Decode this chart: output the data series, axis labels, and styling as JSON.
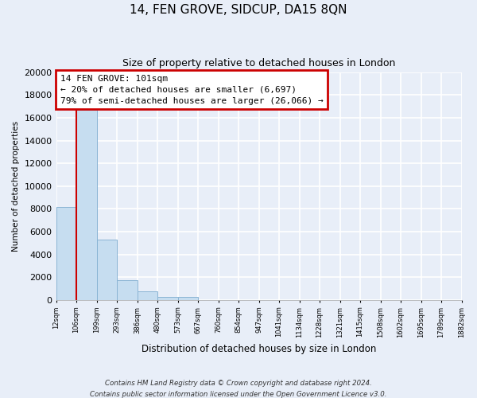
{
  "title": "14, FEN GROVE, SIDCUP, DA15 8QN",
  "subtitle": "Size of property relative to detached houses in London",
  "xlabel": "Distribution of detached houses by size in London",
  "ylabel": "Number of detached properties",
  "bar_values": [
    8200,
    16700,
    5300,
    1750,
    750,
    250,
    270,
    0,
    0,
    0,
    0,
    0,
    0,
    0,
    0,
    0,
    0,
    0,
    0,
    0
  ],
  "bin_labels": [
    "12sqm",
    "106sqm",
    "199sqm",
    "293sqm",
    "386sqm",
    "480sqm",
    "573sqm",
    "667sqm",
    "760sqm",
    "854sqm",
    "947sqm",
    "1041sqm",
    "1134sqm",
    "1228sqm",
    "1321sqm",
    "1415sqm",
    "1508sqm",
    "1602sqm",
    "1695sqm",
    "1789sqm",
    "1882sqm"
  ],
  "bar_color": "#c6ddf0",
  "bar_edge_color": "#8ab4d4",
  "vline_color": "#cc0000",
  "ylim": [
    0,
    20000
  ],
  "yticks": [
    0,
    2000,
    4000,
    6000,
    8000,
    10000,
    12000,
    14000,
    16000,
    18000,
    20000
  ],
  "annotation_title": "14 FEN GROVE: 101sqm",
  "annotation_line1": "← 20% of detached houses are smaller (6,697)",
  "annotation_line2": "79% of semi-detached houses are larger (26,066) →",
  "annotation_box_color": "#ffffff",
  "annotation_box_edge_color": "#cc0000",
  "footer1": "Contains HM Land Registry data © Crown copyright and database right 2024.",
  "footer2": "Contains public sector information licensed under the Open Government Licence v3.0.",
  "background_color": "#e8eef8",
  "plot_bg_color": "#e8eef8",
  "grid_color": "#ffffff"
}
